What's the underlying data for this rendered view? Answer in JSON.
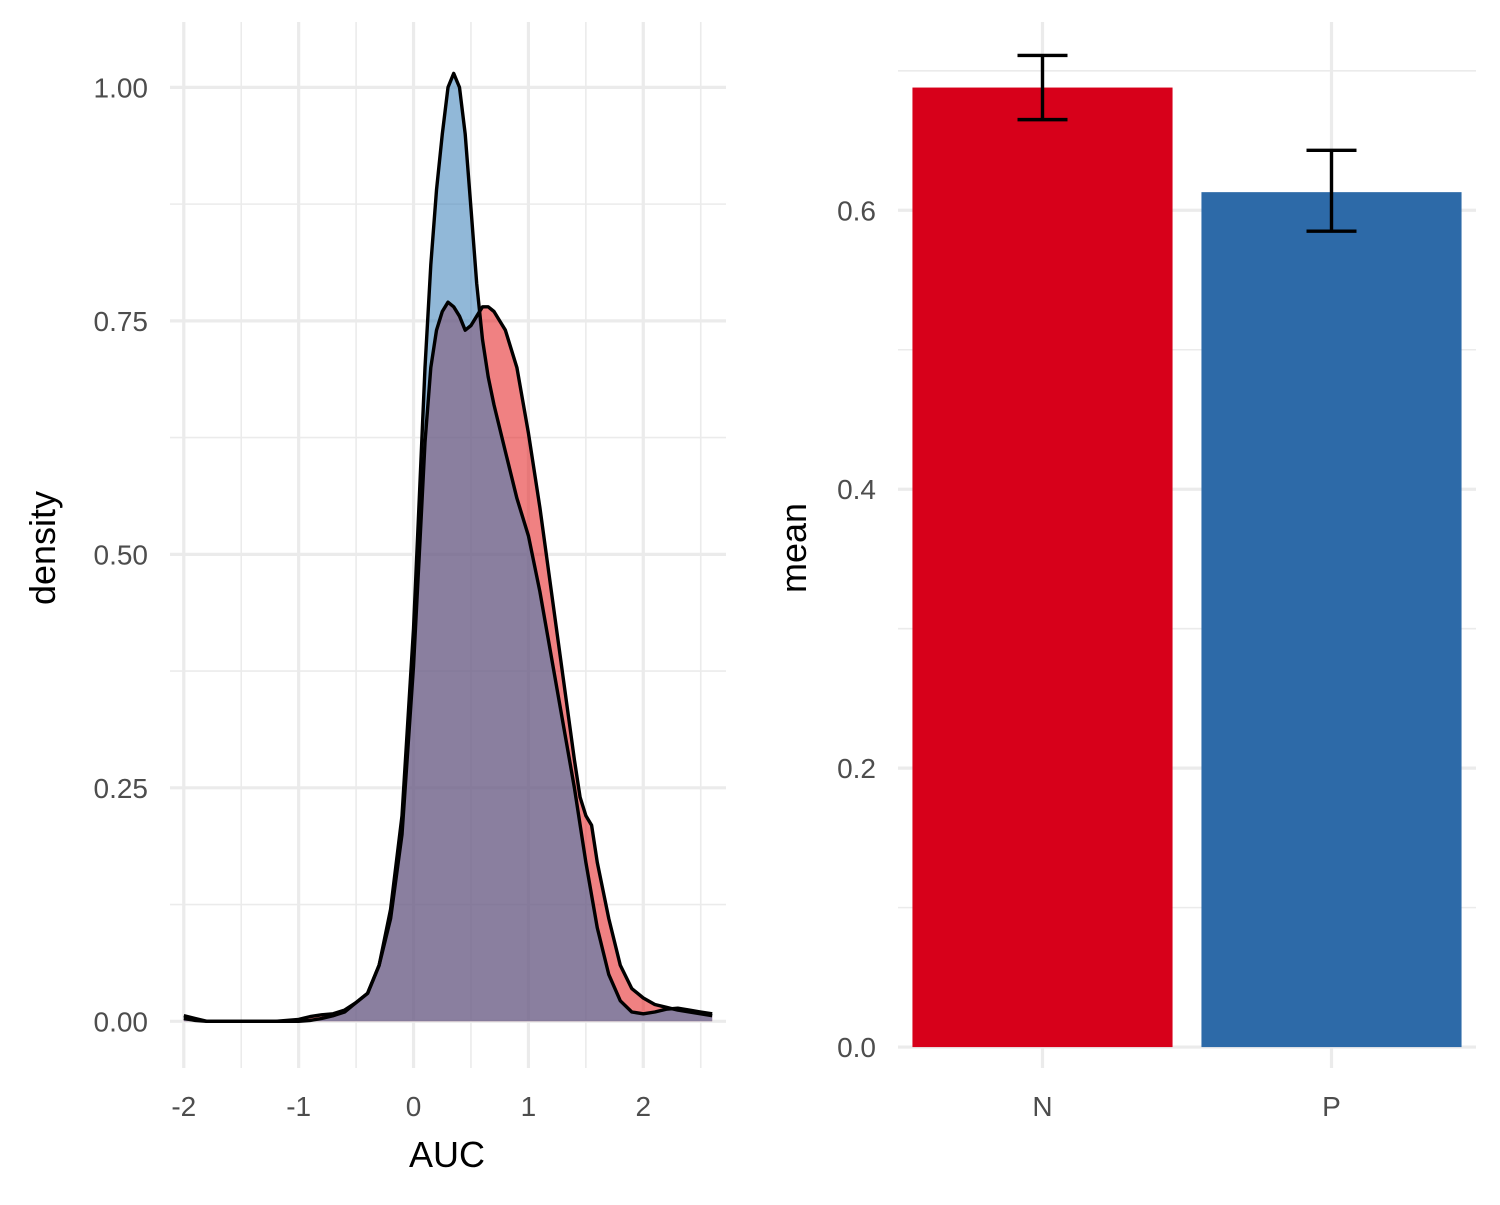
{
  "chart_data": [
    {
      "type": "area",
      "title": "",
      "xlabel": "AUC",
      "ylabel": "density",
      "xlim": [
        -2.12,
        2.72
      ],
      "ylim": [
        -0.05,
        1.07
      ],
      "xticks": [
        -2,
        -1,
        0,
        1,
        2
      ],
      "xtick_labels": [
        "-2",
        "-1",
        "0",
        "1",
        "2"
      ],
      "yticks": [
        0,
        0.25,
        0.5,
        0.75,
        1
      ],
      "ytick_labels": [
        "0.00",
        "0.25",
        "0.50",
        "0.75",
        "1.00"
      ],
      "grid": true,
      "series": [
        {
          "color": "#E41A1C",
          "fill": "#E41A1C",
          "fill_opacity": 0.55,
          "x": [
            -2.0,
            -1.9,
            -1.8,
            -1.6,
            -1.2,
            -1.0,
            -0.9,
            -0.8,
            -0.7,
            -0.6,
            -0.5,
            -0.4,
            -0.3,
            -0.2,
            -0.1,
            0.0,
            0.05,
            0.1,
            0.15,
            0.2,
            0.25,
            0.3,
            0.35,
            0.4,
            0.45,
            0.5,
            0.55,
            0.6,
            0.65,
            0.7,
            0.75,
            0.8,
            0.9,
            1.0,
            1.1,
            1.2,
            1.3,
            1.4,
            1.45,
            1.5,
            1.55,
            1.6,
            1.7,
            1.8,
            1.9,
            2.0,
            2.1,
            2.2,
            2.3,
            2.4,
            2.5,
            2.6
          ],
          "y": [
            0.003,
            0.001,
            0.0,
            0.0,
            0.0,
            0.002,
            0.005,
            0.007,
            0.008,
            0.012,
            0.02,
            0.03,
            0.06,
            0.11,
            0.2,
            0.38,
            0.5,
            0.62,
            0.7,
            0.74,
            0.76,
            0.77,
            0.765,
            0.755,
            0.74,
            0.745,
            0.755,
            0.765,
            0.765,
            0.76,
            0.75,
            0.74,
            0.7,
            0.63,
            0.55,
            0.46,
            0.37,
            0.28,
            0.24,
            0.22,
            0.21,
            0.17,
            0.11,
            0.06,
            0.035,
            0.025,
            0.018,
            0.015,
            0.012,
            0.01,
            0.008,
            0.006
          ]
        },
        {
          "color": "#377EB8",
          "fill": "#377EB8",
          "fill_opacity": 0.55,
          "x": [
            -2.0,
            -1.9,
            -1.8,
            -1.6,
            -1.2,
            -1.0,
            -0.9,
            -0.8,
            -0.7,
            -0.6,
            -0.5,
            -0.4,
            -0.3,
            -0.2,
            -0.1,
            0.0,
            0.05,
            0.1,
            0.15,
            0.2,
            0.25,
            0.3,
            0.35,
            0.4,
            0.45,
            0.5,
            0.55,
            0.6,
            0.65,
            0.7,
            0.8,
            0.9,
            1.0,
            1.1,
            1.2,
            1.3,
            1.4,
            1.5,
            1.6,
            1.7,
            1.8,
            1.9,
            2.0,
            2.1,
            2.2,
            2.3,
            2.4,
            2.5,
            2.6
          ],
          "y": [
            0.006,
            0.003,
            0.0,
            0.0,
            0.0,
            0.0,
            0.001,
            0.003,
            0.006,
            0.01,
            0.02,
            0.03,
            0.06,
            0.12,
            0.22,
            0.42,
            0.56,
            0.7,
            0.81,
            0.89,
            0.95,
            1.0,
            1.015,
            1.0,
            0.95,
            0.87,
            0.79,
            0.73,
            0.69,
            0.66,
            0.61,
            0.56,
            0.52,
            0.46,
            0.39,
            0.32,
            0.25,
            0.17,
            0.1,
            0.05,
            0.022,
            0.01,
            0.008,
            0.01,
            0.013,
            0.014,
            0.012,
            0.01,
            0.008
          ]
        }
      ]
    },
    {
      "type": "bar",
      "title": "",
      "xlabel": "",
      "ylabel": "mean",
      "categories": [
        "N",
        "P"
      ],
      "values": [
        0.688,
        0.613
      ],
      "error_low": [
        0.665,
        0.585
      ],
      "error_high": [
        0.711,
        0.643
      ],
      "colors": [
        "#D7001A",
        "#2D6AA8"
      ],
      "ylim": [
        -0.015,
        0.735
      ],
      "yticks": [
        0,
        0.2,
        0.4,
        0.6
      ],
      "ytick_labels": [
        "0.0",
        "0.2",
        "0.4",
        "0.6"
      ],
      "grid": true
    }
  ]
}
